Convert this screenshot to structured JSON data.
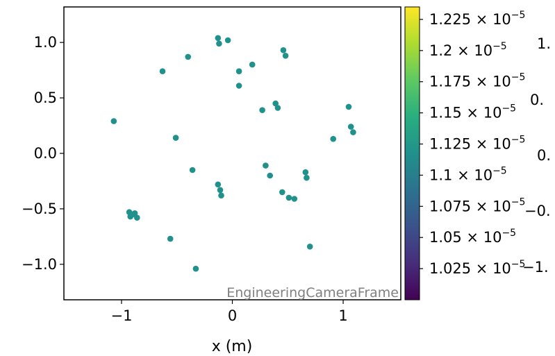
{
  "chart_data": {
    "type": "scatter",
    "xlabel": "x  (m)",
    "ylabel": "",
    "xlim": [
      -1.52,
      1.52
    ],
    "ylim": [
      -1.32,
      1.32
    ],
    "x_ticks": [
      -1,
      0,
      1
    ],
    "x_tick_labels": [
      "−1",
      "0",
      "1"
    ],
    "y_ticks": [
      -1.0,
      -0.5,
      0.0,
      0.5,
      1.0
    ],
    "y_tick_labels": [
      "−1.0",
      "−0.5",
      "0.0",
      "0.5",
      "1.0"
    ],
    "grid": false,
    "marker_color": "#21918c",
    "watermark": "EngineeringCameraFrame",
    "points": [
      {
        "x": -1.07,
        "y": 0.29
      },
      {
        "x": -0.63,
        "y": 0.74
      },
      {
        "x": -0.51,
        "y": 0.14
      },
      {
        "x": -0.4,
        "y": 0.87
      },
      {
        "x": -0.36,
        "y": -0.15
      },
      {
        "x": -0.56,
        "y": -0.77
      },
      {
        "x": -0.33,
        "y": -1.04
      },
      {
        "x": -0.93,
        "y": -0.53
      },
      {
        "x": -0.92,
        "y": -0.57
      },
      {
        "x": -0.88,
        "y": -0.54
      },
      {
        "x": -0.86,
        "y": -0.58
      },
      {
        "x": -0.9,
        "y": -0.55
      },
      {
        "x": -0.13,
        "y": 1.04
      },
      {
        "x": -0.12,
        "y": 0.99
      },
      {
        "x": -0.04,
        "y": 1.02
      },
      {
        "x": 0.06,
        "y": 0.74
      },
      {
        "x": 0.06,
        "y": 0.61
      },
      {
        "x": 0.18,
        "y": 0.8
      },
      {
        "x": 0.27,
        "y": 0.39
      },
      {
        "x": 0.39,
        "y": 0.45
      },
      {
        "x": 0.41,
        "y": 0.41
      },
      {
        "x": 0.46,
        "y": 0.93
      },
      {
        "x": 0.48,
        "y": 0.88
      },
      {
        "x": 0.3,
        "y": -0.11
      },
      {
        "x": 0.34,
        "y": -0.2
      },
      {
        "x": 0.45,
        "y": -0.35
      },
      {
        "x": 0.51,
        "y": -0.4
      },
      {
        "x": 0.56,
        "y": -0.41
      },
      {
        "x": 0.66,
        "y": -0.17
      },
      {
        "x": 0.67,
        "y": -0.22
      },
      {
        "x": 0.7,
        "y": -0.84
      },
      {
        "x": -0.13,
        "y": -0.28
      },
      {
        "x": -0.11,
        "y": -0.33
      },
      {
        "x": -0.1,
        "y": -0.38
      },
      {
        "x": 0.91,
        "y": 0.13
      },
      {
        "x": 1.05,
        "y": 0.42
      },
      {
        "x": 1.07,
        "y": 0.24
      },
      {
        "x": 1.09,
        "y": 0.19
      }
    ],
    "colorbar": {
      "cmap": "viridis",
      "range": [
        1e-05,
        1.235e-05
      ],
      "ticks": [
        {
          "value": 1.225e-05,
          "mantissa": "1.225",
          "exp": "−5"
        },
        {
          "value": 1.2e-05,
          "mantissa": "1.2",
          "exp": "−5"
        },
        {
          "value": 1.175e-05,
          "mantissa": "1.175",
          "exp": "−5"
        },
        {
          "value": 1.15e-05,
          "mantissa": "1.15",
          "exp": "−5"
        },
        {
          "value": 1.125e-05,
          "mantissa": "1.125",
          "exp": "−5"
        },
        {
          "value": 1.1e-05,
          "mantissa": "1.1",
          "exp": "−5"
        },
        {
          "value": 1.075e-05,
          "mantissa": "1.075",
          "exp": "−5"
        },
        {
          "value": 1.05e-05,
          "mantissa": "1.05",
          "exp": "−5"
        },
        {
          "value": 1.025e-05,
          "mantissa": "1.025",
          "exp": "−5"
        }
      ],
      "times_sign": "×",
      "base": "10"
    },
    "overlapping_labels": [
      "1.",
      "0.",
      "0.",
      "−0.",
      "−1."
    ]
  }
}
